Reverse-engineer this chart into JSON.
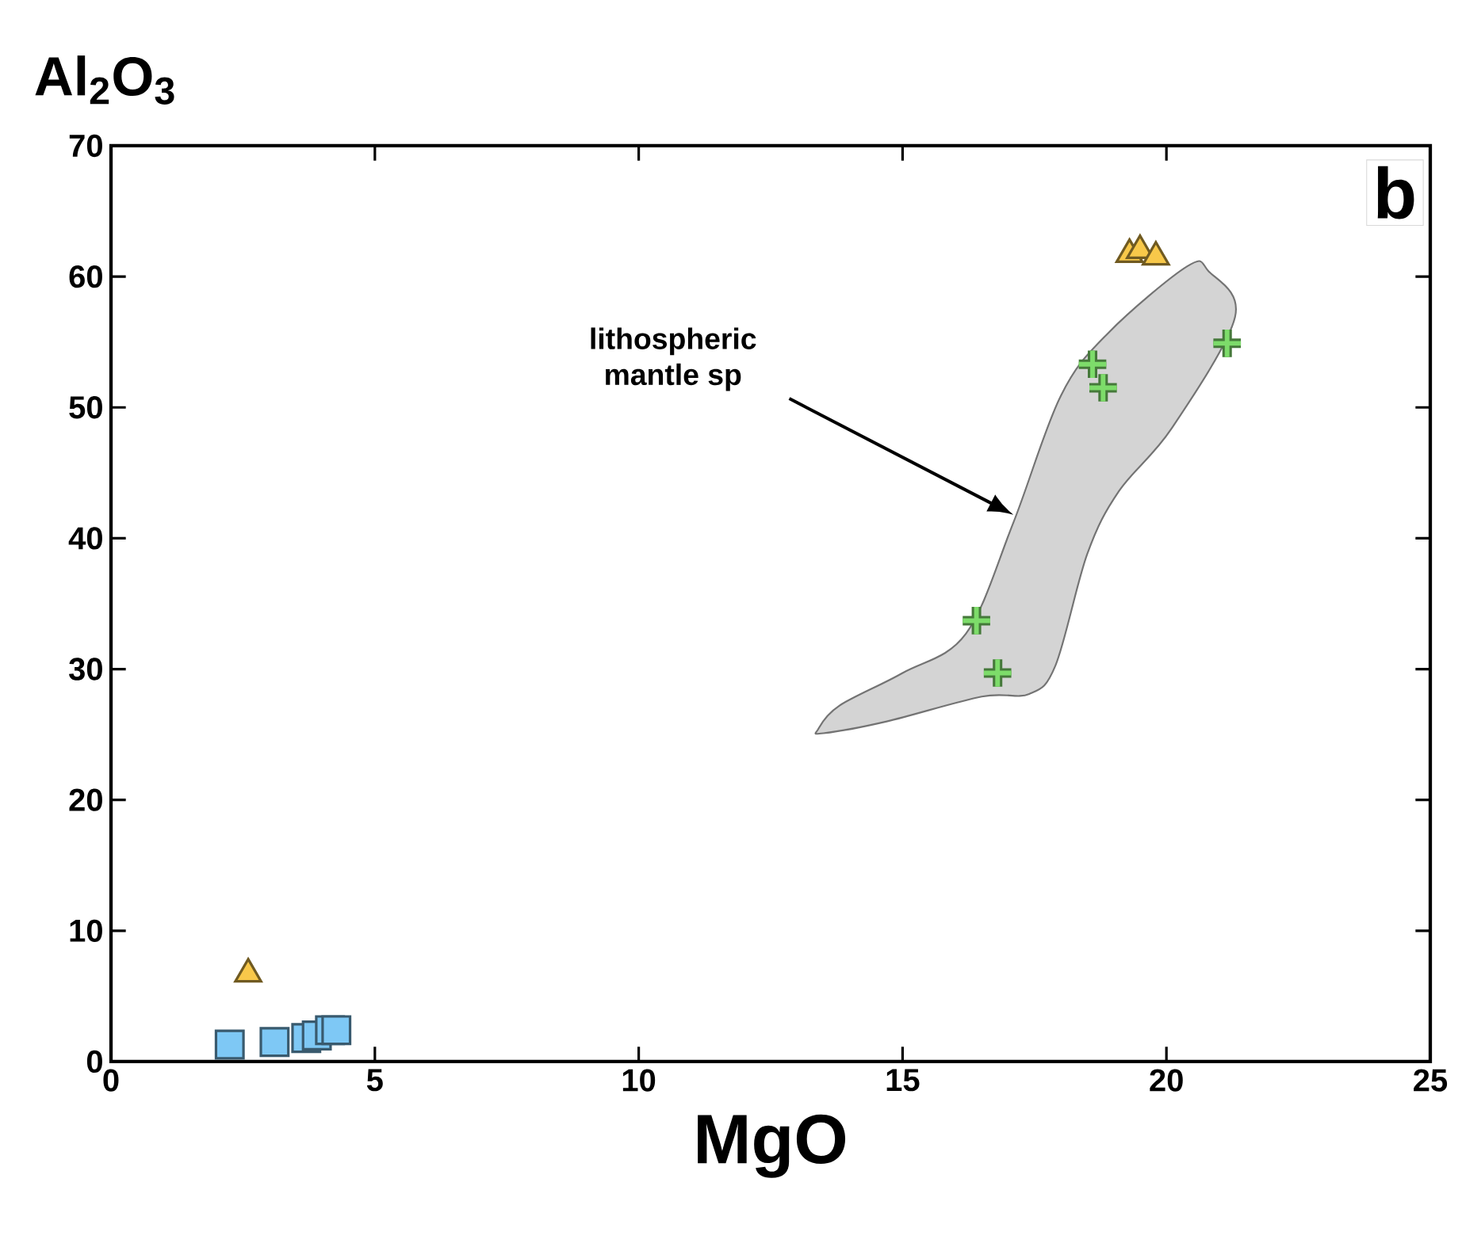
{
  "chart_data": {
    "type": "scatter",
    "xlabel": "MgO",
    "ylabel": "Al$_{2}$O$_{3}$",
    "xlim": [
      0,
      25
    ],
    "ylim": [
      0,
      70
    ],
    "xticks": [
      0,
      5,
      10,
      15,
      20,
      25
    ],
    "yticks": [
      0,
      10,
      20,
      30,
      40,
      50,
      60,
      70
    ],
    "grid": false,
    "annotations": [
      "b",
      "lithospheric mantle sp"
    ],
    "series": [
      {
        "color": "#7ec8f5",
        "marker": "square",
        "x": [
          2.25,
          3.1,
          3.7,
          3.9,
          4.15,
          4.27
        ],
        "values": [
          1.3,
          1.5,
          1.8,
          2.0,
          2.4,
          2.4
        ]
      },
      {
        "color": "#f8c84a",
        "marker": "triangle",
        "x": [
          2.6,
          19.3,
          19.5,
          19.8
        ],
        "values": [
          6.7,
          61.7,
          62.0,
          61.5
        ]
      },
      {
        "color": "#7ddc6a",
        "marker": "cross",
        "x": [
          18.6,
          18.8,
          21.15,
          16.4,
          16.8
        ],
        "values": [
          53.3,
          51.5,
          54.9,
          33.7,
          29.7
        ]
      }
    ]
  }
}
